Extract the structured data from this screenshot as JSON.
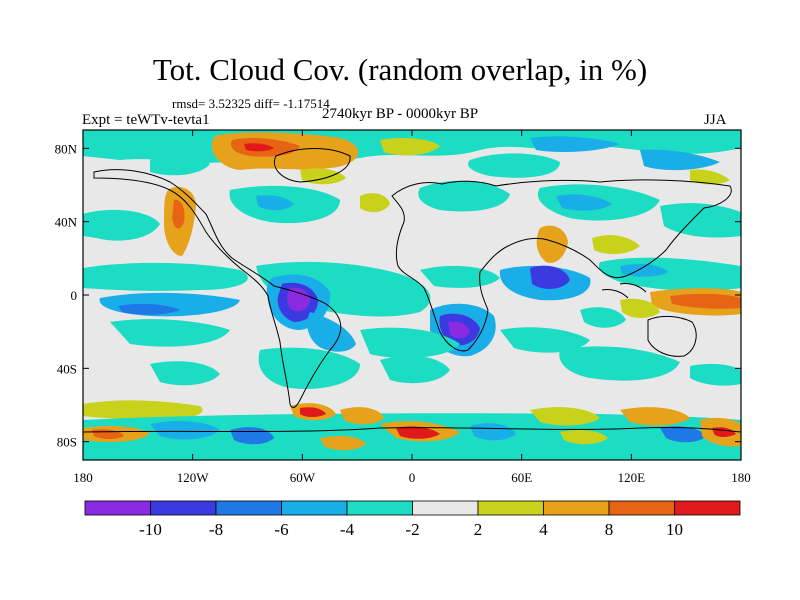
{
  "title": "Tot. Cloud Cov. (random overlap, in %)",
  "stats": "rmsd= 3.52325 diff= -1.17514",
  "period": "2740kyr BP - 0000kyr BP",
  "expt": "Expt = teWTv-tevta1",
  "season": "JJA",
  "lat_ticks": [
    {
      "value": 80,
      "label": "80N"
    },
    {
      "value": 40,
      "label": "40N"
    },
    {
      "value": 0,
      "label": "0"
    },
    {
      "value": -40,
      "label": "40S"
    },
    {
      "value": -80,
      "label": "80S"
    }
  ],
  "lon_ticks": [
    {
      "value": -180,
      "label": "180"
    },
    {
      "value": -120,
      "label": "120W"
    },
    {
      "value": -60,
      "label": "60W"
    },
    {
      "value": 0,
      "label": "0"
    },
    {
      "value": 60,
      "label": "60E"
    },
    {
      "value": 120,
      "label": "120E"
    },
    {
      "value": 180,
      "label": "180"
    }
  ],
  "colorbar": {
    "colors": [
      "#8a2be2",
      "#3a3ae0",
      "#1e78e6",
      "#19aee8",
      "#1ddcc4",
      "#e8e8e8",
      "#c8d21a",
      "#e6a21a",
      "#e66414",
      "#e01a1a"
    ],
    "labels": [
      "-10",
      "-8",
      "-6",
      "-4",
      "-2",
      "2",
      "4",
      "8",
      "10"
    ]
  },
  "map_extent": {
    "lon_min": -180,
    "lon_max": 180,
    "lat_min": -90,
    "lat_max": 90
  }
}
